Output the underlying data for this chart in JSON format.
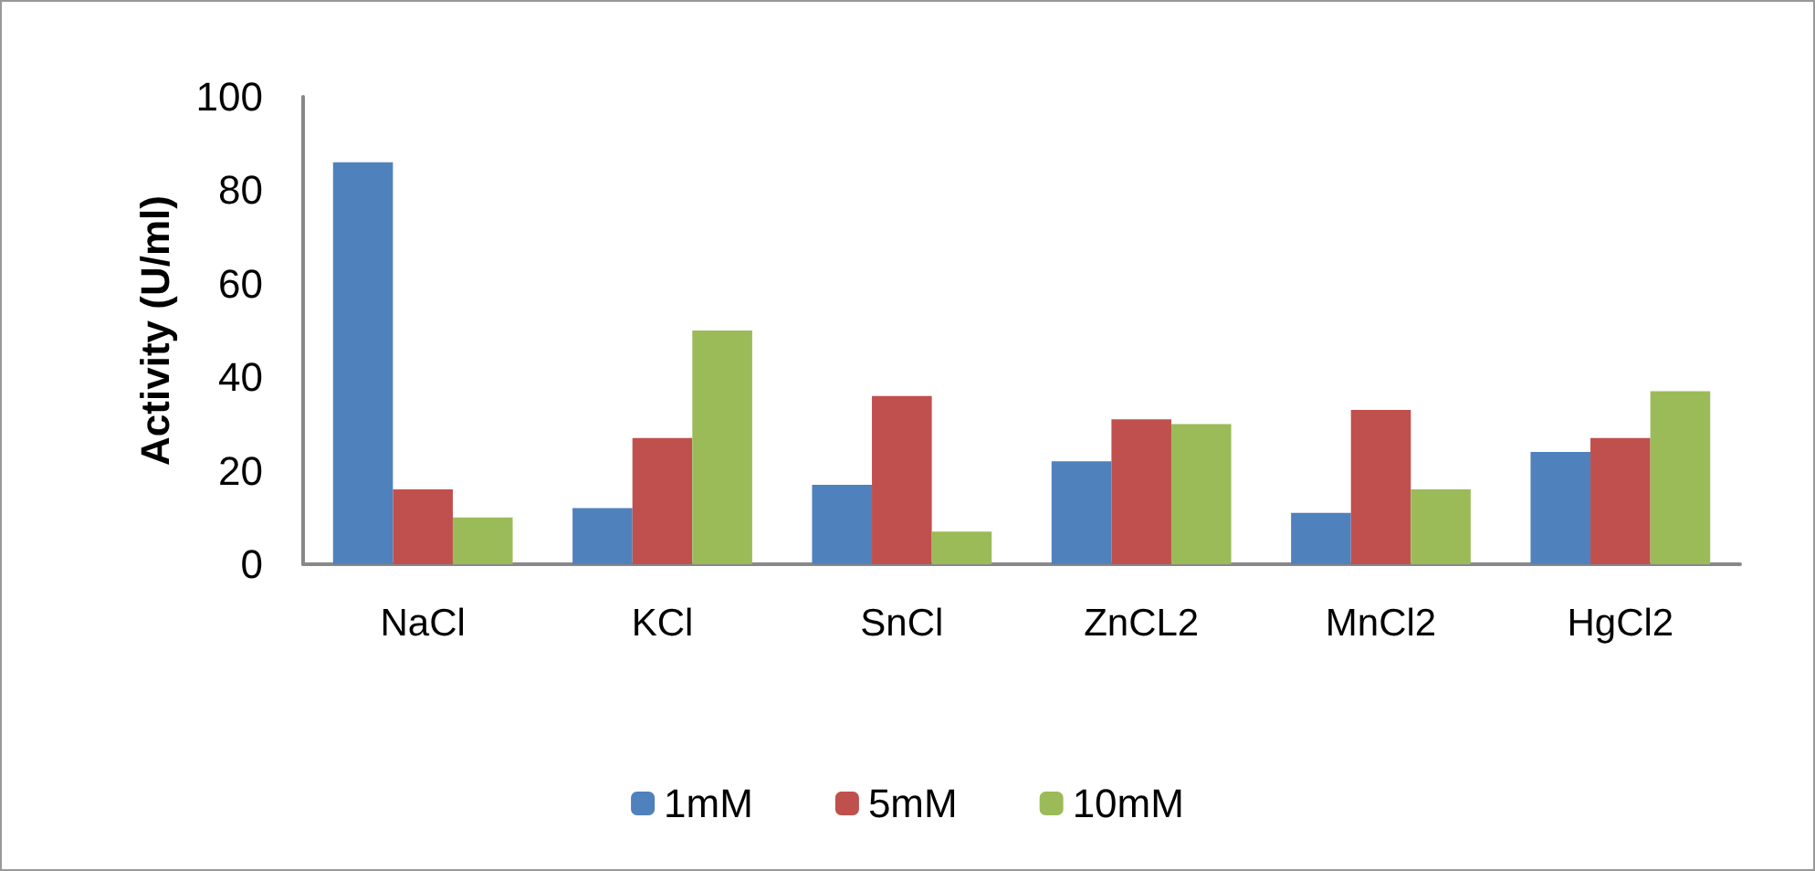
{
  "chart_data": {
    "type": "bar",
    "ylabel": "Activity (U/ml)",
    "categories": [
      "NaCl",
      "KCl",
      "SnCl",
      "ZnCL2",
      "MnCl2",
      "HgCl2"
    ],
    "series": [
      {
        "name": "1mM",
        "color": "#4f81bd",
        "values": [
          86,
          12,
          17,
          22,
          11,
          24
        ]
      },
      {
        "name": "5mM",
        "color": "#c0504d",
        "values": [
          16,
          27,
          36,
          31,
          33,
          27
        ]
      },
      {
        "name": "10mM",
        "color": "#9bbb59",
        "values": [
          10,
          50,
          7,
          30,
          16,
          37
        ]
      }
    ],
    "ylim": [
      0,
      100
    ],
    "yticks": [
      0,
      20,
      40,
      60,
      80,
      100
    ],
    "grid": false,
    "legend": "bottom"
  }
}
